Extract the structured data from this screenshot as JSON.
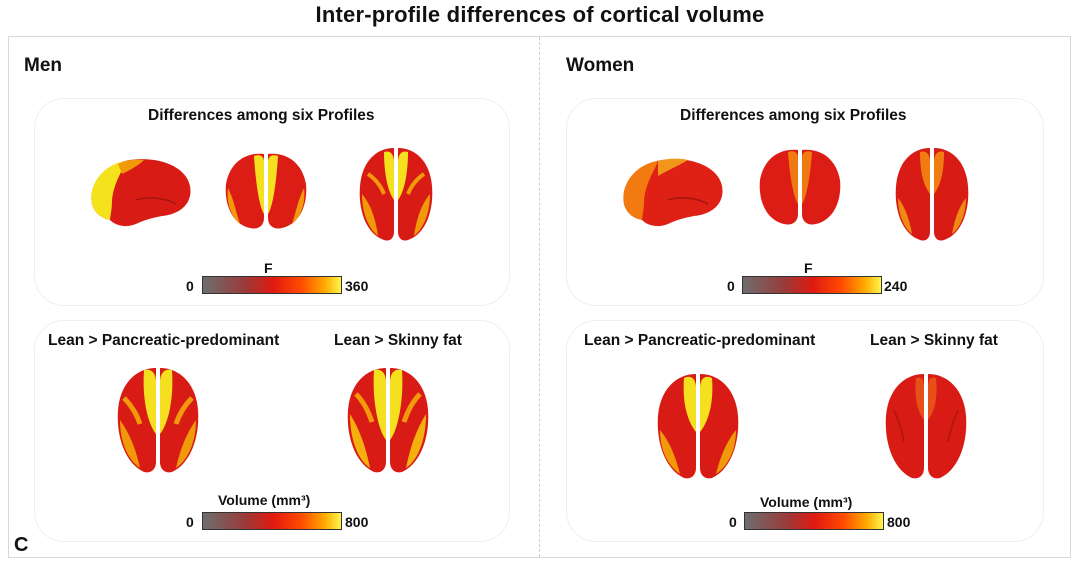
{
  "title": "Inter-profile differences of cortical volume",
  "panel_letter": "C",
  "colormap": {
    "low": "#6e6e6e",
    "mid1": "#cc1a12",
    "mid2": "#ff2a00",
    "mid3": "#ff9a00",
    "high": "#ffff55"
  },
  "men": {
    "label": "Men",
    "top_section": {
      "title": "Differences among six Profiles",
      "cb_label": "F",
      "cb_min": "0",
      "cb_max": "360"
    },
    "bottom_section": {
      "cb_label": "Volume (mm³)",
      "cb_min": "0",
      "cb_max": "800",
      "comparisons": [
        "Lean > Pancreatic-predominant",
        "Lean > Skinny fat"
      ]
    }
  },
  "women": {
    "label": "Women",
    "top_section": {
      "title": "Differences among six Profiles",
      "cb_label": "F",
      "cb_min": "0",
      "cb_max": "240"
    },
    "bottom_section": {
      "cb_label": "Volume (mm³)",
      "cb_min": "0",
      "cb_max": "800",
      "comparisons": [
        "Lean > Pancreatic-predominant",
        "Lean > Skinny fat"
      ]
    }
  }
}
